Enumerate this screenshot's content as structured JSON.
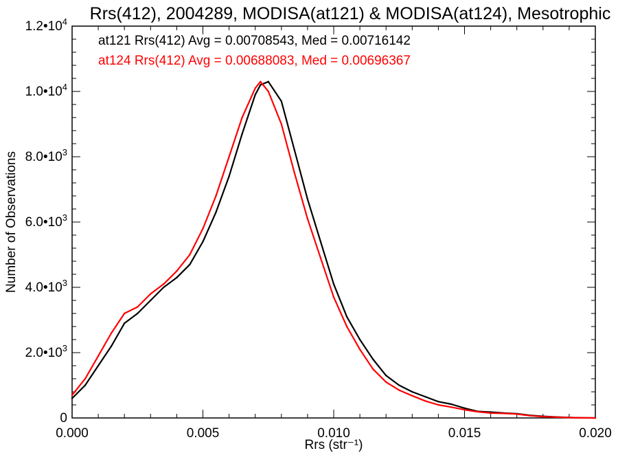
{
  "colors": {
    "background": "#ffffff",
    "axis": "#000000",
    "series_at121": "#000000",
    "series_at124": "#ff0000"
  },
  "chart_data": {
    "type": "line",
    "title": "Rrs(412), 2004289, MODISA(at121) & MODISA(at124), Mesotrophic",
    "xlabel": "Rrs (str⁻¹)",
    "ylabel": "Number of Observations",
    "xlim": [
      0.0,
      0.02
    ],
    "ylim": [
      0,
      12000
    ],
    "grid": false,
    "legend_position": "top-left",
    "x_ticks": [
      {
        "value": 0.0,
        "label": "0.000"
      },
      {
        "value": 0.005,
        "label": "0.005"
      },
      {
        "value": 0.01,
        "label": "0.010"
      },
      {
        "value": 0.015,
        "label": "0.015"
      },
      {
        "value": 0.02,
        "label": "0.020"
      }
    ],
    "y_ticks": [
      {
        "value": 0,
        "label": "0",
        "mantissa": "",
        "exponent": ""
      },
      {
        "value": 2000,
        "label": "2.0•10^3",
        "mantissa": "2.0•10",
        "exponent": "3"
      },
      {
        "value": 4000,
        "label": "4.0•10^3",
        "mantissa": "4.0•10",
        "exponent": "3"
      },
      {
        "value": 6000,
        "label": "6.0•10^3",
        "mantissa": "6.0•10",
        "exponent": "3"
      },
      {
        "value": 8000,
        "label": "8.0•10^3",
        "mantissa": "8.0•10",
        "exponent": "3"
      },
      {
        "value": 10000,
        "label": "1.0•10^4",
        "mantissa": "1.0•10",
        "exponent": "4"
      },
      {
        "value": 12000,
        "label": "1.2•10^4",
        "mantissa": "1.2•10",
        "exponent": "4"
      }
    ],
    "series": [
      {
        "name": "at121",
        "legend_text": "at121 Rrs(412) Avg = 0.00708543, Med = 0.00716142",
        "color": "#000000",
        "x": [
          0.0,
          0.0005,
          0.001,
          0.0015,
          0.002,
          0.0025,
          0.003,
          0.0035,
          0.004,
          0.0045,
          0.005,
          0.0055,
          0.006,
          0.0065,
          0.007,
          0.0072,
          0.0075,
          0.008,
          0.0085,
          0.009,
          0.0095,
          0.01,
          0.0105,
          0.011,
          0.0115,
          0.012,
          0.0125,
          0.013,
          0.0135,
          0.014,
          0.0145,
          0.015,
          0.0155,
          0.016,
          0.0165,
          0.017,
          0.0175,
          0.018,
          0.0185,
          0.019,
          0.0195,
          0.02
        ],
        "y": [
          600,
          1000,
          1600,
          2200,
          2900,
          3200,
          3600,
          4000,
          4300,
          4700,
          5400,
          6300,
          7400,
          8700,
          9900,
          10200,
          10300,
          9700,
          8200,
          6700,
          5400,
          4100,
          3100,
          2400,
          1800,
          1300,
          1000,
          800,
          650,
          500,
          420,
          300,
          200,
          180,
          150,
          130,
          80,
          50,
          30,
          15,
          5,
          0
        ]
      },
      {
        "name": "at124",
        "legend_text": "at124 Rrs(412) Avg = 0.00688083, Med = 0.00696367",
        "color": "#ff0000",
        "x": [
          0.0,
          0.0005,
          0.001,
          0.0015,
          0.002,
          0.0025,
          0.003,
          0.0035,
          0.004,
          0.0045,
          0.005,
          0.0055,
          0.006,
          0.0065,
          0.007,
          0.0072,
          0.0075,
          0.008,
          0.0085,
          0.009,
          0.0095,
          0.01,
          0.0105,
          0.011,
          0.0115,
          0.012,
          0.0125,
          0.013,
          0.0135,
          0.014,
          0.0145,
          0.015,
          0.0155,
          0.016,
          0.0165,
          0.017,
          0.0175,
          0.018,
          0.0185,
          0.019,
          0.0195,
          0.02
        ],
        "y": [
          700,
          1200,
          1900,
          2600,
          3200,
          3400,
          3800,
          4100,
          4500,
          5000,
          5800,
          6800,
          8000,
          9200,
          10100,
          10300,
          10000,
          9000,
          7500,
          6100,
          4900,
          3700,
          2800,
          2100,
          1500,
          1100,
          850,
          680,
          520,
          400,
          330,
          250,
          190,
          150,
          140,
          120,
          70,
          40,
          25,
          10,
          3,
          0
        ]
      }
    ]
  }
}
